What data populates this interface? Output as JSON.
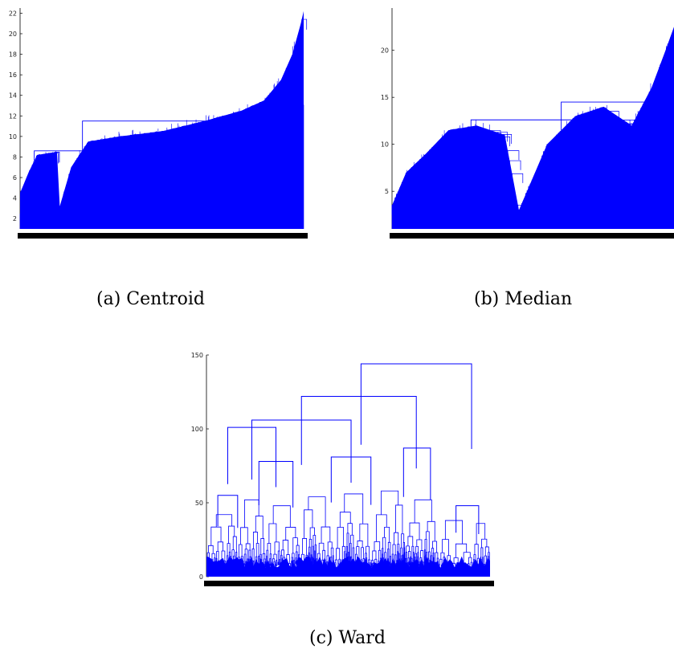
{
  "chart_data": [
    {
      "type": "dendrogram",
      "caption": "(a) Centroid",
      "ylim": [
        1,
        22.5
      ],
      "yticks": [
        2,
        4,
        6,
        8,
        10,
        12,
        14,
        16,
        18,
        20,
        22
      ],
      "ytick_labels": [
        "2",
        "4",
        "6",
        "8",
        "10",
        "12",
        "14",
        "16",
        "18",
        "20",
        "22"
      ],
      "color": "#0000ff",
      "leaf_heights_profile": [
        {
          "x": 0.0,
          "y": 4.5
        },
        {
          "x": 0.03,
          "y": 6.5
        },
        {
          "x": 0.06,
          "y": 8.2
        },
        {
          "x": 0.13,
          "y": 8.5
        },
        {
          "x": 0.14,
          "y": 3.2
        },
        {
          "x": 0.18,
          "y": 7.0
        },
        {
          "x": 0.24,
          "y": 9.5
        },
        {
          "x": 0.35,
          "y": 10.0
        },
        {
          "x": 0.5,
          "y": 10.5
        },
        {
          "x": 0.65,
          "y": 11.5
        },
        {
          "x": 0.78,
          "y": 12.5
        },
        {
          "x": 0.86,
          "y": 13.5
        },
        {
          "x": 0.92,
          "y": 15.5
        },
        {
          "x": 0.96,
          "y": 18.0
        },
        {
          "x": 0.99,
          "y": 21.0
        },
        {
          "x": 1.0,
          "y": 22.2
        }
      ],
      "merges": [
        {
          "x1": 0.05,
          "x2": 0.22,
          "y": 8.6
        },
        {
          "x1": 0.22,
          "x2": 0.75,
          "y": 11.5
        }
      ]
    },
    {
      "type": "dendrogram",
      "caption": "(b) Median",
      "ylim": [
        1,
        24.5
      ],
      "yticks": [
        5,
        10,
        15,
        20
      ],
      "ytick_labels": [
        "5",
        "10",
        "15",
        "20"
      ],
      "color": "#0000ff",
      "leaf_heights_profile": [
        {
          "x": 0.0,
          "y": 3.5
        },
        {
          "x": 0.05,
          "y": 7.0
        },
        {
          "x": 0.12,
          "y": 9.0
        },
        {
          "x": 0.2,
          "y": 11.5
        },
        {
          "x": 0.3,
          "y": 12.0
        },
        {
          "x": 0.4,
          "y": 11.0
        },
        {
          "x": 0.45,
          "y": 3.0
        },
        {
          "x": 0.55,
          "y": 10.0
        },
        {
          "x": 0.65,
          "y": 13.0
        },
        {
          "x": 0.75,
          "y": 14.0
        },
        {
          "x": 0.85,
          "y": 12.0
        },
        {
          "x": 0.92,
          "y": 16.0
        },
        {
          "x": 0.97,
          "y": 20.0
        },
        {
          "x": 1.0,
          "y": 22.5
        }
      ],
      "merges": [
        {
          "x1": 0.28,
          "x2": 0.66,
          "y": 12.6
        },
        {
          "x1": 0.6,
          "x2": 0.95,
          "y": 14.5
        }
      ]
    },
    {
      "type": "dendrogram",
      "caption": "(c) Ward",
      "ylim": [
        0,
        150
      ],
      "yticks": [
        0,
        50,
        100,
        150
      ],
      "ytick_labels": [
        "0",
        "50",
        "100",
        "150"
      ],
      "color": "#0000ff",
      "merges": [
        {
          "x1": 0.545,
          "x2": 0.935,
          "y": 144
        },
        {
          "x1": 0.335,
          "x2": 0.74,
          "y": 122
        },
        {
          "x1": 0.16,
          "x2": 0.51,
          "y": 106
        },
        {
          "x1": 0.075,
          "x2": 0.245,
          "y": 101
        },
        {
          "x1": 0.44,
          "x2": 0.58,
          "y": 81
        },
        {
          "x1": 0.695,
          "x2": 0.79,
          "y": 87
        },
        {
          "x1": 0.185,
          "x2": 0.305,
          "y": 78
        },
        {
          "x1": 0.04,
          "x2": 0.11,
          "y": 55
        },
        {
          "x1": 0.88,
          "x2": 0.96,
          "y": 48
        }
      ]
    }
  ]
}
